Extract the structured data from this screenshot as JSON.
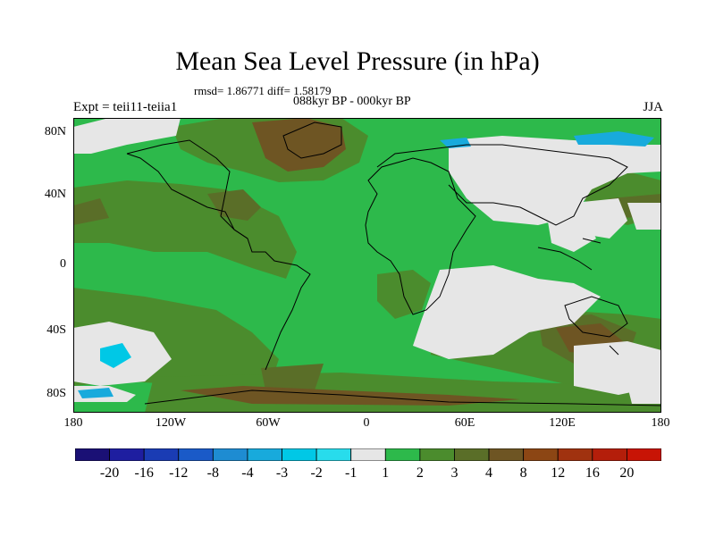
{
  "title": "Mean Sea Level Pressure (in hPa)",
  "stats": "rmsd= 1.86771 diff= 1.58179",
  "period": "088kyr BP - 000kyr BP",
  "experiment": "Expt = teii11-teiia1",
  "season": "JJA",
  "lat_labels": [
    "80N",
    "40N",
    "0",
    "40S",
    "80S"
  ],
  "lon_labels": [
    "180",
    "120W",
    "60W",
    "0",
    "60E",
    "120E",
    "180"
  ],
  "colorbar": {
    "labels": [
      "-20",
      "-16",
      "-12",
      "-8",
      "-4",
      "-3",
      "-2",
      "-1",
      "1",
      "2",
      "3",
      "4",
      "8",
      "12",
      "16",
      "20"
    ],
    "colors": [
      "#1a1075",
      "#1e1ea0",
      "#1a3cb4",
      "#1a5ac8",
      "#1e8cd2",
      "#18aadc",
      "#00c8e6",
      "#28dcec",
      "#e6e6e6",
      "#2db94b",
      "#4b8c2d",
      "#5a6e28",
      "#6e5523",
      "#8c4614",
      "#a0320f",
      "#b41e0a",
      "#c81405"
    ]
  },
  "palette": {
    "ocean_green": "#2db94b",
    "dark_green": "#4b8c2d",
    "olive": "#5a6e28",
    "brown": "#6e5523",
    "light_grey": "#e6e6e6",
    "cyan": "#00c8e6",
    "sky": "#18aadc"
  }
}
